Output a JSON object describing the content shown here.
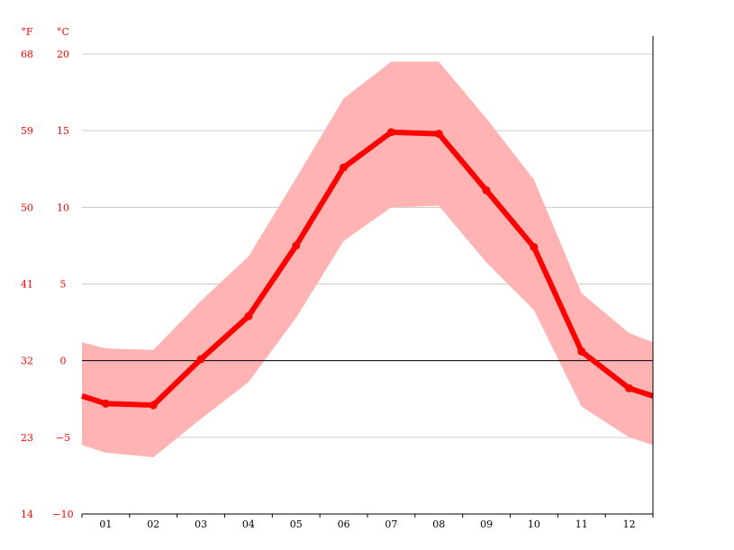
{
  "chart_data": {
    "type": "line",
    "units": {
      "fahrenheit": "°F",
      "celsius": "°C"
    },
    "y_left_ticks": [
      "14",
      "23",
      "32",
      "41",
      "50",
      "59",
      "68"
    ],
    "y_right_ticks": [
      "−10",
      "−5",
      "0",
      "5",
      "10",
      "15",
      "20"
    ],
    "y_tick_values": [
      -10,
      -5,
      0,
      5,
      10,
      15,
      20
    ],
    "ylim": [
      -10,
      20
    ],
    "categories": [
      "01",
      "02",
      "03",
      "04",
      "05",
      "06",
      "07",
      "08",
      "09",
      "10",
      "11",
      "12"
    ],
    "series": [
      {
        "values": [
          -2.8,
          -2.9,
          0.1,
          2.9,
          7.5,
          12.6,
          14.9,
          14.8,
          11.1,
          7.4,
          0.6,
          -1.8
        ]
      }
    ],
    "range_upper": [
      0.8,
      0.7,
      3.9,
      6.8,
      11.9,
      17.1,
      19.5,
      19.5,
      15.8,
      11.8,
      4.4,
      1.8
    ],
    "range_lower": [
      -6.0,
      -6.3,
      -3.8,
      -1.4,
      2.8,
      7.8,
      10.0,
      10.1,
      6.4,
      3.3,
      -3.0,
      -5.0
    ],
    "edge_values": {
      "start": {
        "mean": -2.3,
        "upper": 1.2,
        "lower": -5.5
      },
      "end": {
        "mean": -2.3,
        "upper": 1.2,
        "lower": -5.5
      }
    },
    "grid": true,
    "zero_line": true,
    "colors": {
      "line": "#ff0000",
      "band": "#ffb3b3",
      "grid": "#cccccc",
      "axis": "#000000",
      "ticks_y": "#ff0000"
    }
  }
}
